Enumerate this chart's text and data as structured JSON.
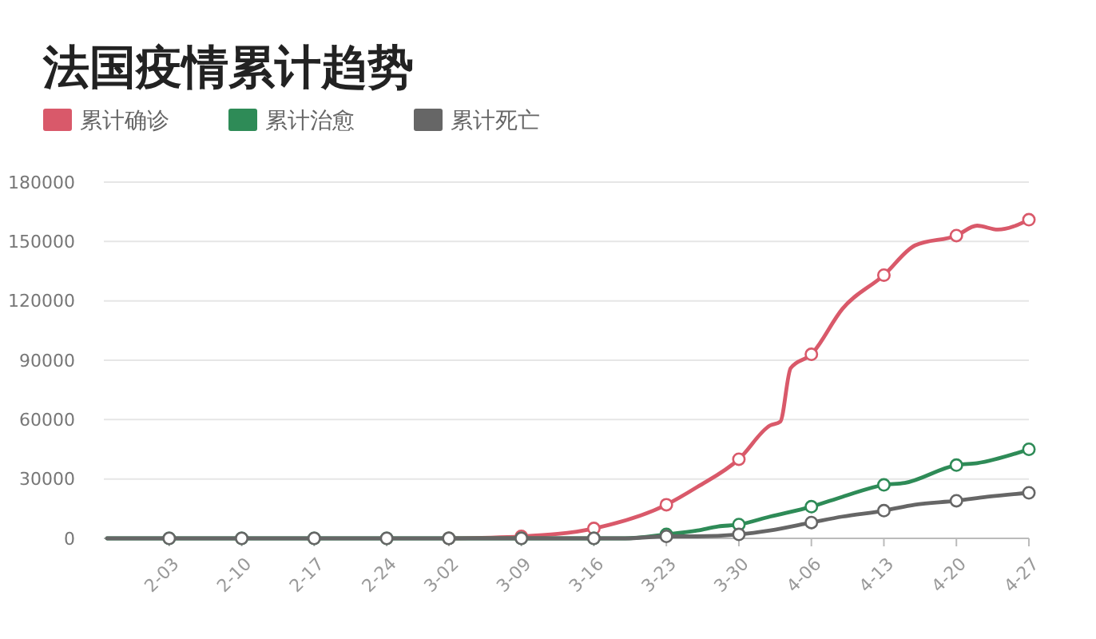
{
  "chart_data": {
    "type": "line",
    "title": "法国疫情累计趋势",
    "xlim": [
      "--01-28",
      "--04-27"
    ],
    "xticks": [
      {
        "value": "--02-03",
        "label": "2-03"
      },
      {
        "value": "--02-10",
        "label": "2-10"
      },
      {
        "value": "--02-17",
        "label": "2-17"
      },
      {
        "value": "--02-24",
        "label": "2-24"
      },
      {
        "value": "--03-02",
        "label": "3-02"
      },
      {
        "value": "--03-09",
        "label": "3-09"
      },
      {
        "value": "--03-16",
        "label": "3-16"
      },
      {
        "value": "--03-23",
        "label": "3-23"
      },
      {
        "value": "--03-30",
        "label": "3-30"
      },
      {
        "value": "--04-06",
        "label": "4-06"
      },
      {
        "value": "--04-13",
        "label": "4-13"
      },
      {
        "value": "--04-20",
        "label": "4-20"
      },
      {
        "value": "--04-27",
        "label": "4-27"
      }
    ],
    "ylim": [
      0,
      180000
    ],
    "yticks": [
      0,
      30000,
      60000,
      90000,
      120000,
      150000,
      180000
    ],
    "grid": "y",
    "legend": "top left",
    "marker": "circle",
    "series": [
      {
        "name": "累计确诊",
        "color": "#d9596a",
        "x": [
          "--03-02",
          "--03-09",
          "--03-16",
          "--03-23",
          "--03-26",
          "--03-30",
          "--04-02",
          "--04-03",
          "--04-04",
          "--04-06",
          "--04-09",
          "--04-13",
          "--04-16",
          "--04-20",
          "--04-22",
          "--04-24",
          "--04-27"
        ],
        "values": [
          0,
          1000,
          5000,
          17000,
          26000,
          40000,
          57000,
          59000,
          86000,
          93000,
          116000,
          133000,
          148000,
          153000,
          158000,
          156000,
          161000
        ]
      },
      {
        "name": "累计治愈",
        "color": "#2e8b57",
        "x": [
          "--01-28",
          "--02-03",
          "--02-10",
          "--02-17",
          "--02-24",
          "--03-02",
          "--03-09",
          "--03-16",
          "--03-19",
          "--03-23",
          "--03-26",
          "--03-28",
          "--03-30",
          "--04-02",
          "--04-06",
          "--04-09",
          "--04-13",
          "--04-15",
          "--04-20",
          "--04-22",
          "--04-27"
        ],
        "values": [
          0,
          0,
          0,
          0,
          0,
          0,
          0,
          0,
          0,
          2000,
          4000,
          6000,
          7000,
          11000,
          16000,
          21000,
          27000,
          28000,
          37000,
          38000,
          45000
        ]
      },
      {
        "name": "累计死亡",
        "color": "#666666",
        "x": [
          "--01-28",
          "--02-03",
          "--02-10",
          "--02-17",
          "--02-24",
          "--03-02",
          "--03-09",
          "--03-16",
          "--03-19",
          "--03-23",
          "--03-26",
          "--03-30",
          "--04-02",
          "--04-06",
          "--04-09",
          "--04-13",
          "--04-16",
          "--04-20",
          "--04-23",
          "--04-27"
        ],
        "values": [
          0,
          0,
          0,
          0,
          0,
          0,
          0,
          0,
          0,
          1000,
          1000,
          2000,
          4000,
          8000,
          11000,
          14000,
          17000,
          19000,
          21000,
          23000
        ]
      }
    ]
  }
}
